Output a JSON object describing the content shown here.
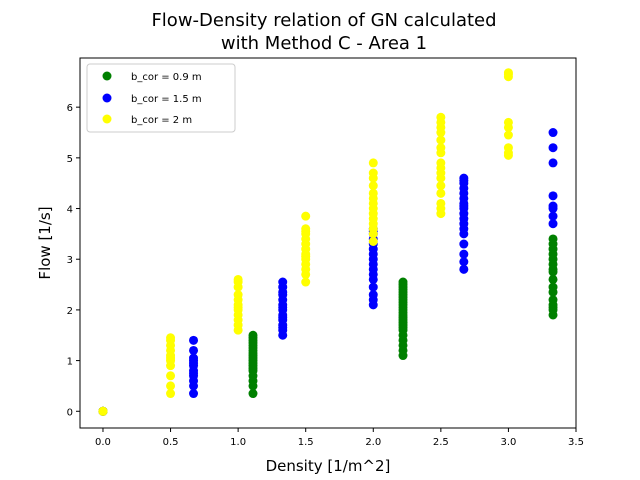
{
  "chart_data": {
    "type": "scatter",
    "title_lines": [
      "Flow-Density relation of GN calculated",
      "with Method C - Area 1"
    ],
    "xlabel": "Density [1/m^2]",
    "ylabel": "Flow [1/s]",
    "xlim": [
      -0.17,
      3.5
    ],
    "ylim": [
      -0.33,
      6.97
    ],
    "xticks": [
      "0.0",
      "0.5",
      "1.0",
      "1.5",
      "2.0",
      "2.5",
      "3.0",
      "3.5"
    ],
    "yticks": [
      "0",
      "1",
      "2",
      "3",
      "4",
      "5",
      "6"
    ],
    "grid": false,
    "legend": "top-left",
    "series": [
      {
        "name": "b_cor = 0.9 m",
        "color": "#008000",
        "x": [
          0,
          0,
          0,
          1.11,
          1.11,
          1.11,
          1.11,
          1.11,
          1.11,
          1.11,
          1.11,
          1.11,
          1.11,
          1.11,
          1.11,
          1.11,
          1.11,
          1.11,
          1.11,
          1.11,
          1.11,
          1.11,
          2.22,
          2.22,
          2.22,
          2.22,
          2.22,
          2.22,
          2.22,
          2.22,
          2.22,
          2.22,
          2.22,
          2.22,
          2.22,
          2.22,
          2.22,
          2.22,
          2.22,
          2.22,
          2.22,
          2.22,
          2.22,
          2.22,
          2.22,
          2.22,
          2.22,
          3.33,
          3.33,
          3.33,
          3.33,
          3.33,
          3.33,
          3.33,
          3.33,
          3.33,
          3.33,
          3.33,
          3.33,
          3.33,
          3.33,
          3.33,
          3.33
        ],
        "y": [
          0,
          0,
          0,
          0.35,
          0.5,
          0.6,
          0.7,
          0.8,
          0.85,
          0.9,
          0.95,
          1.0,
          1.05,
          1.1,
          1.15,
          1.2,
          1.25,
          1.3,
          1.35,
          1.4,
          1.45,
          1.5,
          1.1,
          1.2,
          1.3,
          1.4,
          1.5,
          1.6,
          1.65,
          1.7,
          1.75,
          1.8,
          1.85,
          1.9,
          1.95,
          2.0,
          2.05,
          2.1,
          2.15,
          2.2,
          2.25,
          2.3,
          2.35,
          2.4,
          2.45,
          2.5,
          2.55,
          1.9,
          2.0,
          2.1,
          2.2,
          2.35,
          2.45,
          2.6,
          2.75,
          2.9,
          3.0,
          3.1,
          3.2,
          3.3,
          3.4,
          2.05,
          2.8
        ]
      },
      {
        "name": "b_cor = 1.5 m",
        "color": "#0000ff",
        "x": [
          0,
          0,
          0,
          0.67,
          0.67,
          0.67,
          0.67,
          0.67,
          0.67,
          0.67,
          0.67,
          0.67,
          0.67,
          0.67,
          0.67,
          1.33,
          1.33,
          1.33,
          1.33,
          1.33,
          1.33,
          1.33,
          1.33,
          1.33,
          1.33,
          1.33,
          1.33,
          1.33,
          1.33,
          1.33,
          2.0,
          2.0,
          2.0,
          2.0,
          2.0,
          2.0,
          2.0,
          2.0,
          2.0,
          2.0,
          2.0,
          2.0,
          2.0,
          2.0,
          2.0,
          2.0,
          2.67,
          2.67,
          2.67,
          2.67,
          2.67,
          2.67,
          2.67,
          2.67,
          2.67,
          2.67,
          2.67,
          2.67,
          2.67,
          2.67,
          2.67,
          2.67,
          2.67,
          2.67,
          3.33,
          3.33,
          3.33,
          3.33,
          3.33,
          3.33,
          3.33,
          3.33
        ],
        "y": [
          0,
          0,
          0,
          0.35,
          0.5,
          0.6,
          0.7,
          0.75,
          0.8,
          0.9,
          0.95,
          1.0,
          1.05,
          1.2,
          1.4,
          1.5,
          1.6,
          1.65,
          1.7,
          1.8,
          1.85,
          1.9,
          2.0,
          2.05,
          2.1,
          2.2,
          2.3,
          2.35,
          2.45,
          2.55,
          2.1,
          2.2,
          2.3,
          2.45,
          2.6,
          2.7,
          2.8,
          2.9,
          3.0,
          3.1,
          3.2,
          3.3,
          3.4,
          3.5,
          3.55,
          3.6,
          2.8,
          2.95,
          3.1,
          3.3,
          3.5,
          3.6,
          3.7,
          3.8,
          3.9,
          4.0,
          4.05,
          4.1,
          4.2,
          4.3,
          4.4,
          4.5,
          4.55,
          4.6,
          3.7,
          3.85,
          4.0,
          4.05,
          4.25,
          4.9,
          5.2,
          5.5
        ]
      },
      {
        "name": "b_cor = 2 m",
        "color": "#ffff00",
        "x": [
          0,
          0,
          0,
          0.5,
          0.5,
          0.5,
          0.5,
          0.5,
          0.5,
          0.5,
          0.5,
          0.5,
          0.5,
          0.5,
          1.0,
          1.0,
          1.0,
          1.0,
          1.0,
          1.0,
          1.0,
          1.0,
          1.0,
          1.0,
          1.0,
          1.0,
          1.5,
          1.5,
          1.5,
          1.5,
          1.5,
          1.5,
          1.5,
          1.5,
          1.5,
          1.5,
          1.5,
          1.5,
          1.5,
          1.5,
          2.0,
          2.0,
          2.0,
          2.0,
          2.0,
          2.0,
          2.0,
          2.0,
          2.0,
          2.0,
          2.0,
          2.0,
          2.0,
          2.0,
          2.5,
          2.5,
          2.5,
          2.5,
          2.5,
          2.5,
          2.5,
          2.5,
          2.5,
          2.5,
          2.5,
          2.5,
          2.5,
          2.5,
          2.5,
          2.5,
          3.0,
          3.0,
          3.0,
          3.0,
          3.0,
          3.0,
          3.0,
          3.0,
          3.0
        ],
        "y": [
          0,
          0,
          0,
          0.35,
          0.5,
          0.7,
          0.9,
          1.0,
          1.05,
          1.1,
          1.2,
          1.3,
          1.4,
          1.45,
          1.6,
          1.7,
          1.8,
          1.9,
          2.0,
          2.05,
          2.1,
          2.2,
          2.3,
          2.45,
          2.55,
          2.6,
          2.55,
          2.7,
          2.8,
          2.9,
          3.0,
          3.05,
          3.1,
          3.2,
          3.3,
          3.4,
          3.5,
          3.55,
          3.6,
          3.85,
          3.35,
          3.5,
          3.6,
          3.7,
          3.8,
          3.9,
          4.0,
          4.1,
          4.2,
          4.3,
          4.45,
          4.6,
          4.7,
          4.9,
          3.9,
          4.0,
          4.1,
          4.3,
          4.45,
          4.6,
          4.7,
          4.8,
          4.9,
          5.1,
          5.2,
          5.35,
          5.5,
          5.6,
          5.7,
          5.8,
          5.05,
          5.1,
          5.2,
          5.45,
          5.6,
          5.7,
          6.6,
          6.65,
          6.68
        ]
      }
    ]
  }
}
